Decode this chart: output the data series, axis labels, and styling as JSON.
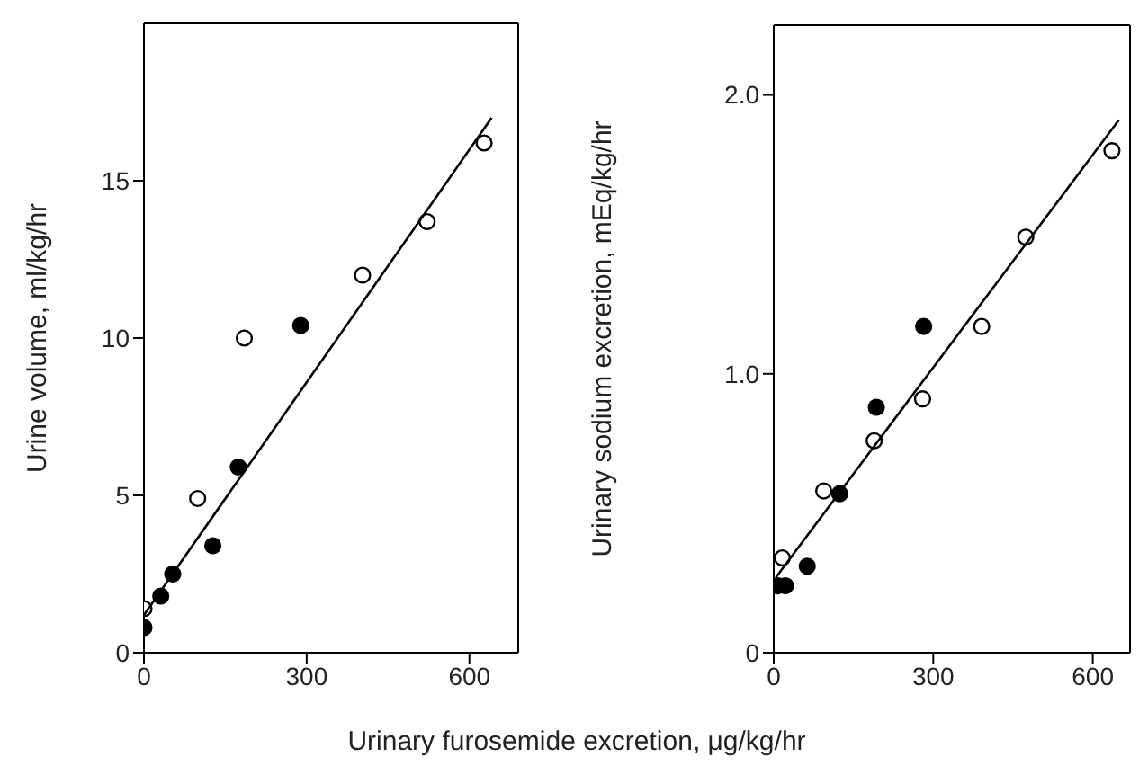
{
  "chart_data": [
    {
      "type": "scatter",
      "xlabel": "Urinary furosemide excretion, μg/kg/hr",
      "ylabel": "Urine volume, ml/kg/hr",
      "xlim": [
        0,
        690
      ],
      "xticks": [
        0,
        300,
        600
      ],
      "ylim": [
        0,
        20
      ],
      "yticks": [
        0,
        5,
        10,
        15
      ],
      "series": [
        {
          "color": "#ffffff",
          "marker": "circle",
          "x": [
            0,
            99,
            185,
            403,
            522,
            627
          ],
          "values": [
            1.4,
            4.9,
            10.0,
            12.0,
            13.7,
            16.2
          ]
        },
        {
          "color": "#000000",
          "marker": "circle",
          "x": [
            0,
            31,
            53,
            127,
            174,
            289
          ],
          "values": [
            0.8,
            1.8,
            2.5,
            3.4,
            5.9,
            10.4
          ]
        },
        {
          "type": "line",
          "color": "#000000",
          "marker": "none",
          "line_style": "solid",
          "x": [
            0,
            641
          ],
          "values": [
            1.2,
            17.0
          ]
        }
      ]
    },
    {
      "type": "scatter",
      "ylabel": "Urinary sodium excretion, mEq/kg/hr",
      "xlim": [
        0,
        670
      ],
      "xticks": [
        0,
        300,
        600
      ],
      "ylim": [
        0,
        2.25
      ],
      "yticks": [
        0,
        {
          "value": 1,
          "label": "1.0"
        },
        {
          "value": 2,
          "label": "2.0"
        }
      ],
      "series": [
        {
          "color": "#ffffff",
          "marker": "circle",
          "x": [
            16,
            94,
            189,
            280,
            391,
            474,
            636
          ],
          "values": [
            0.34,
            0.58,
            0.76,
            0.91,
            1.17,
            1.49,
            1.8
          ]
        },
        {
          "color": "#000000",
          "marker": "circle",
          "x": [
            8,
            22,
            63,
            124,
            193,
            282
          ],
          "values": [
            0.24,
            0.24,
            0.31,
            0.57,
            0.88,
            1.17
          ]
        },
        {
          "type": "line",
          "color": "#000000",
          "marker": "none",
          "line_style": "solid",
          "x": [
            4,
            649
          ],
          "values": [
            0.27,
            1.91
          ]
        }
      ]
    }
  ]
}
